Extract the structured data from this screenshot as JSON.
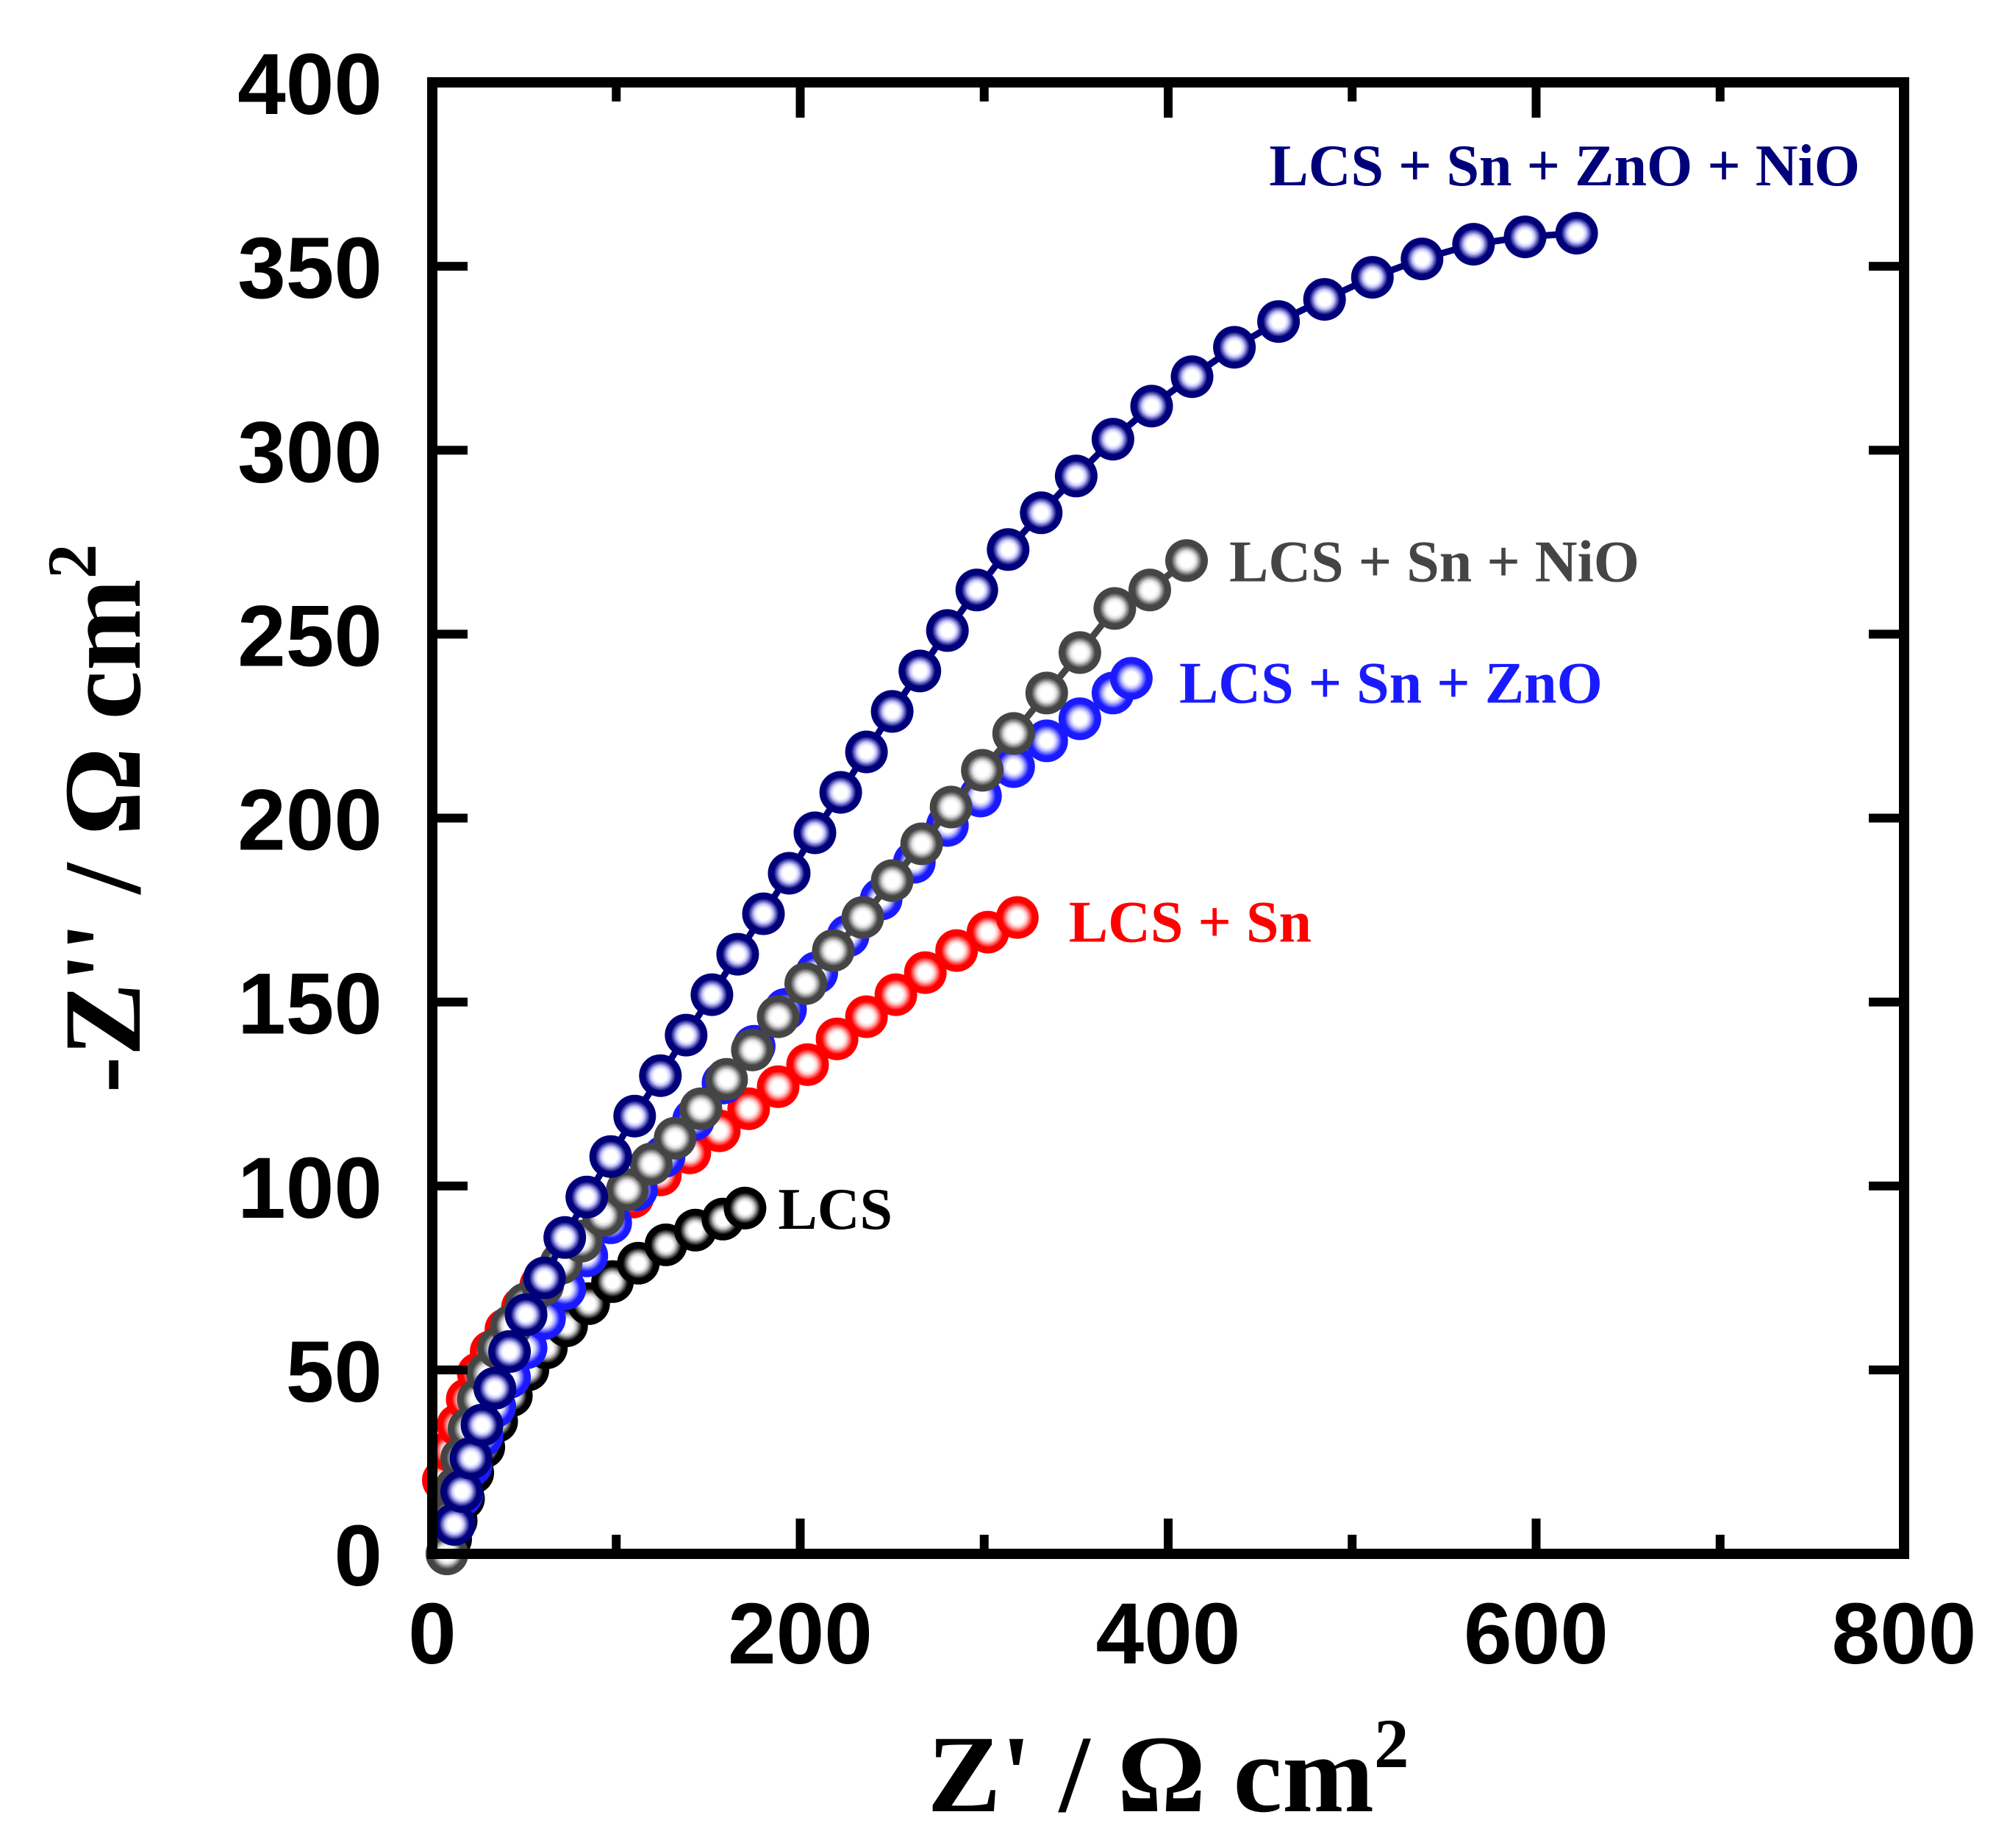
{
  "chart_data": {
    "type": "scatter",
    "title": "",
    "xlabel": "Z' / Ω cm",
    "xlabel_sup": "2",
    "ylabel": "-Z'' / Ω cm",
    "ylabel_sup": "2",
    "xlim": [
      0,
      800
    ],
    "ylim": [
      0,
      400
    ],
    "xticks": [
      0,
      200,
      400,
      600,
      800
    ],
    "yticks": [
      0,
      50,
      100,
      150,
      200,
      250,
      300,
      350,
      400
    ],
    "xtick_labels": [
      "0",
      "200",
      "400",
      "600",
      "800"
    ],
    "ytick_labels": [
      "0",
      "50",
      "100",
      "150",
      "200",
      "250",
      "300",
      "350",
      "400"
    ],
    "grid": false,
    "series": [
      {
        "name": "LCS",
        "label": "LCS",
        "color": "#000000",
        "highlight": "#c8c8c8",
        "label_color": "#000000",
        "x": [
          8,
          10,
          13,
          17,
          22,
          28,
          35,
          43,
          52,
          62,
          73,
          85,
          98,
          112,
          127,
          143,
          158,
          170
        ],
        "y": [
          0,
          4,
          9,
          15,
          22,
          29,
          36,
          43,
          50,
          56,
          62,
          68,
          74,
          79,
          84,
          88,
          91,
          94
        ]
      },
      {
        "name": "LCS + Sn",
        "label": "LCS + Sn",
        "color": "#ff0000",
        "highlight": "#ffc8c8",
        "label_color": "#ff0000",
        "x": [
          6,
          10,
          14,
          19,
          25,
          32,
          40,
          49,
          59,
          70,
          82,
          95,
          109,
          124,
          140,
          156,
          172,
          188,
          204,
          220,
          236,
          252,
          268,
          285,
          302,
          318
        ],
        "y": [
          20,
          28,
          35,
          42,
          49,
          55,
          61,
          67,
          73,
          79,
          85,
          91,
          97,
          103,
          109,
          115,
          121,
          127,
          133,
          140,
          146,
          152,
          158,
          164,
          169,
          173
        ]
      },
      {
        "name": "LCS + Sn + ZnO",
        "label": "LCS + Sn + ZnO",
        "color": "#1a1aff",
        "highlight": "#c8c8ff",
        "label_color": "#1a1aff",
        "x": [
          12,
          16,
          21,
          27,
          34,
          42,
          51,
          61,
          72,
          84,
          97,
          111,
          126,
          142,
          158,
          175,
          192,
          209,
          226,
          244,
          262,
          280,
          298,
          316,
          334,
          352,
          370,
          380
        ],
        "y": [
          8,
          16,
          24,
          32,
          40,
          48,
          56,
          64,
          72,
          81,
          90,
          99,
          108,
          118,
          128,
          138,
          148,
          158,
          168,
          178,
          188,
          198,
          206,
          214,
          221,
          227,
          234,
          238
        ]
      },
      {
        "name": "LCS + Sn + NiO",
        "label": "LCS + Sn + NiO",
        "color": "#454545",
        "highlight": "#e0e0e0",
        "label_color": "#454545",
        "x": [
          8,
          10,
          13,
          16,
          20,
          25,
          30,
          36,
          43,
          51,
          60,
          70,
          81,
          93,
          106,
          119,
          132,
          146,
          160,
          174,
          188,
          203,
          218,
          234,
          250,
          266,
          282,
          299,
          316,
          334,
          352,
          371,
          390,
          410
        ],
        "y": [
          0,
          10,
          18,
          26,
          34,
          42,
          49,
          56,
          62,
          68,
          73,
          79,
          85,
          92,
          99,
          106,
          113,
          121,
          129,
          137,
          146,
          155,
          164,
          173,
          183,
          193,
          203,
          213,
          223,
          234,
          245,
          257,
          262,
          270
        ]
      },
      {
        "name": "LCS + Sn + ZnO + NiO",
        "label": "LCS + Sn + ZnO + NiO",
        "color": "#00007a",
        "highlight": "#c8c8ff",
        "label_color": "#00007a",
        "x": [
          12,
          16,
          21,
          27,
          34,
          42,
          51,
          61,
          72,
          84,
          97,
          110,
          124,
          138,
          152,
          166,
          180,
          194,
          208,
          222,
          236,
          250,
          265,
          280,
          296,
          313,
          331,
          350,
          370,
          391,
          413,
          436,
          460,
          485,
          511,
          538,
          566,
          594,
          622
        ],
        "y": [
          8,
          17,
          26,
          35,
          45,
          55,
          65,
          75,
          86,
          97,
          108,
          119,
          130,
          141,
          152,
          163,
          174,
          185,
          196,
          207,
          218,
          229,
          240,
          251,
          262,
          273,
          283,
          293,
          303,
          312,
          320,
          328,
          335,
          341,
          347,
          352,
          356,
          358,
          359
        ]
      }
    ]
  }
}
